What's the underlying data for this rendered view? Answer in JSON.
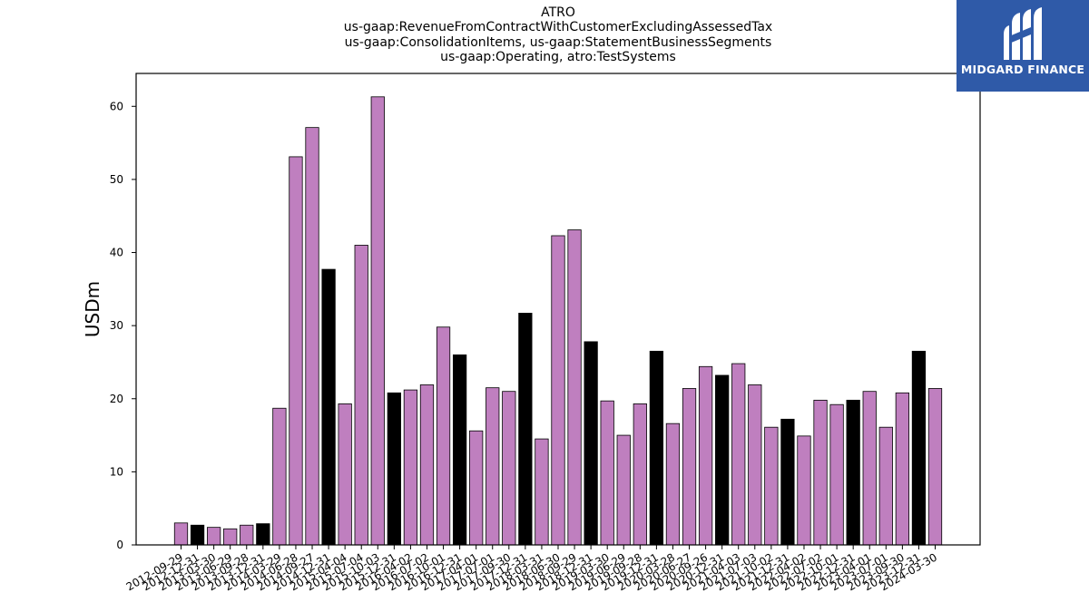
{
  "chart_data": {
    "type": "bar",
    "title_lines": [
      "ATRO",
      "us-gaap:RevenueFromContractWithCustomerExcludingAssessedTax",
      "us-gaap:ConsolidationItems, us-gaap:StatementBusinessSegments",
      "us-gaap:Operating, atro:TestSystems"
    ],
    "ylabel": "USDm",
    "xlabel": "",
    "ylim": [
      0,
      64.5
    ],
    "yticks": [
      0,
      10,
      20,
      30,
      40,
      50,
      60
    ],
    "categories": [
      "2012-09-29",
      "2012-12-31",
      "2013-03-30",
      "2013-06-29",
      "2013-09-28",
      "2013-12-31",
      "2014-03-29",
      "2014-06-28",
      "2014-09-27",
      "2014-12-31",
      "2015-04-04",
      "2015-07-04",
      "2015-10-03",
      "2015-12-31",
      "2016-04-02",
      "2016-07-02",
      "2016-10-01",
      "2016-12-31",
      "2017-04-01",
      "2017-07-01",
      "2017-09-30",
      "2017-12-31",
      "2018-03-31",
      "2018-06-30",
      "2018-09-29",
      "2018-12-31",
      "2019-03-30",
      "2019-06-29",
      "2019-09-28",
      "2019-12-31",
      "2020-03-28",
      "2020-06-27",
      "2020-09-26",
      "2020-12-31",
      "2021-04-03",
      "2021-07-03",
      "2021-10-02",
      "2021-12-31",
      "2022-04-02",
      "2022-07-02",
      "2022-10-01",
      "2022-12-31",
      "2023-04-01",
      "2023-07-01",
      "2023-09-30",
      "2023-12-31",
      "2024-03-30"
    ],
    "values": [
      3.0,
      2.7,
      2.4,
      2.2,
      2.7,
      2.9,
      18.7,
      53.1,
      57.1,
      37.7,
      19.3,
      41.0,
      61.3,
      20.8,
      21.2,
      21.9,
      29.8,
      26.0,
      15.6,
      21.5,
      21.0,
      31.7,
      14.5,
      42.3,
      43.1,
      27.8,
      19.7,
      15.0,
      19.3,
      26.5,
      16.6,
      21.4,
      24.4,
      23.2,
      24.8,
      21.9,
      16.1,
      17.2,
      14.9,
      19.8,
      19.2,
      19.8,
      21.0,
      16.1,
      20.8,
      26.5,
      21.4
    ],
    "highlighted": [
      false,
      true,
      false,
      false,
      false,
      true,
      false,
      false,
      false,
      true,
      false,
      false,
      false,
      true,
      false,
      false,
      false,
      true,
      false,
      false,
      false,
      true,
      false,
      false,
      false,
      true,
      false,
      false,
      false,
      true,
      false,
      false,
      false,
      true,
      false,
      false,
      false,
      true,
      false,
      false,
      false,
      true,
      false,
      false,
      false,
      true,
      false
    ],
    "colors": {
      "bar": "#bf7fbf",
      "highlight": "#000000",
      "edge": "#000000"
    },
    "grid": false,
    "legend": "none"
  },
  "logo": {
    "text": "MIDGARD FINANCE",
    "background": "#2f5aa8",
    "icon": "midgard-logo-icon"
  }
}
